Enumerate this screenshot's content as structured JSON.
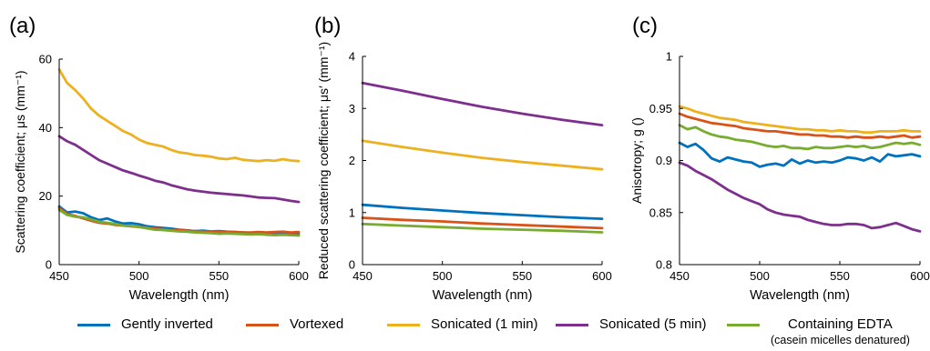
{
  "colors": {
    "gently_inverted": "#0072BD",
    "vortexed": "#D95319",
    "sonicated_1": "#EDB120",
    "sonicated_5": "#7E2F8E",
    "edta": "#77AC30"
  },
  "legend": {
    "gently_inverted": "Gently inverted",
    "vortexed": "Vortexed",
    "sonicated_1": "Sonicated (1 min)",
    "sonicated_5": "Sonicated (5 min)",
    "edta": "Containing EDTA",
    "edta_note": "(casein micelles denatured)"
  },
  "chart_data": [
    {
      "panel": "(a)",
      "type": "line",
      "xlabel": "Wavelength (nm)",
      "ylabel": "Scattering coefficient; μs (mm⁻¹)",
      "xlim": [
        450,
        600
      ],
      "ylim": [
        0,
        60
      ],
      "xticks": [
        450,
        500,
        550,
        600
      ],
      "yticks": [
        0,
        20,
        40,
        60
      ],
      "ytick_labels": [
        "0",
        "20",
        "40",
        "60"
      ],
      "x": [
        450,
        455,
        460,
        465,
        470,
        475,
        480,
        485,
        490,
        495,
        500,
        505,
        510,
        515,
        520,
        525,
        530,
        535,
        540,
        545,
        550,
        555,
        560,
        565,
        570,
        575,
        580,
        585,
        590,
        595,
        600
      ],
      "series": [
        {
          "name": "Gently inverted",
          "color_key": "gently_inverted",
          "values": [
            17.0,
            15.2,
            15.5,
            15.0,
            13.8,
            13.0,
            13.5,
            12.6,
            12.0,
            12.1,
            11.8,
            11.2,
            10.9,
            10.7,
            10.5,
            10.2,
            10.0,
            9.8,
            9.9,
            9.7,
            9.8,
            9.6,
            9.5,
            9.4,
            9.3,
            9.2,
            9.3,
            9.1,
            9.2,
            9.0,
            9.0
          ]
        },
        {
          "name": "Vortexed",
          "color_key": "vortexed",
          "values": [
            16.5,
            14.8,
            14.2,
            13.5,
            12.8,
            12.2,
            12.0,
            11.6,
            11.4,
            11.2,
            11.0,
            10.8,
            10.5,
            10.3,
            10.1,
            10.0,
            9.9,
            9.8,
            9.7,
            9.6,
            9.6,
            9.5,
            9.5,
            9.4,
            9.4,
            9.5,
            9.4,
            9.5,
            9.6,
            9.4,
            9.5
          ]
        },
        {
          "name": "Sonicated (1 min)",
          "color_key": "sonicated_1",
          "values": [
            57.0,
            53.0,
            51.0,
            48.5,
            45.5,
            43.5,
            42.0,
            40.5,
            39.0,
            38.0,
            36.5,
            35.5,
            35.0,
            34.5,
            33.5,
            32.8,
            32.5,
            32.0,
            31.8,
            31.5,
            31.0,
            30.8,
            31.2,
            30.6,
            30.4,
            30.2,
            30.5,
            30.3,
            30.8,
            30.4,
            30.2
          ]
        },
        {
          "name": "Sonicated (5 min)",
          "color_key": "sonicated_5",
          "values": [
            37.5,
            36.0,
            35.0,
            33.5,
            32.0,
            30.5,
            29.5,
            28.5,
            27.5,
            26.8,
            26.0,
            25.3,
            24.5,
            24.0,
            23.2,
            22.6,
            22.0,
            21.6,
            21.3,
            21.0,
            20.8,
            20.6,
            20.4,
            20.2,
            19.9,
            19.6,
            19.5,
            19.4,
            19.0,
            18.6,
            18.3
          ]
        },
        {
          "name": "Containing EDTA",
          "color_key": "edta",
          "values": [
            16.0,
            14.5,
            14.0,
            13.8,
            13.2,
            12.5,
            12.2,
            11.9,
            11.4,
            11.3,
            11.0,
            10.6,
            10.2,
            10.1,
            9.9,
            9.7,
            9.6,
            9.4,
            9.3,
            9.2,
            9.0,
            9.1,
            9.0,
            8.9,
            8.8,
            8.9,
            8.7,
            8.6,
            8.7,
            8.6,
            8.5
          ]
        }
      ]
    },
    {
      "panel": "(b)",
      "type": "line",
      "xlabel": "Wavelength (nm)",
      "ylabel": "Reduced scattering coefficient; μs′ (mm⁻¹)",
      "xlim": [
        450,
        600
      ],
      "ylim": [
        0,
        4
      ],
      "xticks": [
        450,
        500,
        550,
        600
      ],
      "yticks": [
        0,
        1,
        2,
        3,
        4
      ],
      "ytick_labels": [
        "0",
        "1",
        "2",
        "3",
        "4"
      ],
      "x": [
        450,
        475,
        500,
        525,
        550,
        575,
        600
      ],
      "series": [
        {
          "name": "Gently inverted",
          "color_key": "gently_inverted",
          "values": [
            1.15,
            1.09,
            1.04,
            0.99,
            0.95,
            0.91,
            0.88
          ]
        },
        {
          "name": "Vortexed",
          "color_key": "vortexed",
          "values": [
            0.9,
            0.86,
            0.83,
            0.79,
            0.76,
            0.73,
            0.7
          ]
        },
        {
          "name": "Sonicated (1 min)",
          "color_key": "sonicated_1",
          "values": [
            2.38,
            2.26,
            2.15,
            2.05,
            1.97,
            1.9,
            1.83
          ]
        },
        {
          "name": "Sonicated (5 min)",
          "color_key": "sonicated_5",
          "values": [
            3.49,
            3.34,
            3.18,
            3.03,
            2.9,
            2.78,
            2.68
          ]
        },
        {
          "name": "Containing EDTA",
          "color_key": "edta",
          "values": [
            0.78,
            0.75,
            0.72,
            0.69,
            0.67,
            0.65,
            0.62
          ]
        }
      ]
    },
    {
      "panel": "(c)",
      "type": "line",
      "xlabel": "Wavelength (nm)",
      "ylabel": "Anisotropy; g ()",
      "xlim": [
        450,
        600
      ],
      "ylim": [
        0.8,
        1.0
      ],
      "xticks": [
        450,
        500,
        550,
        600
      ],
      "yticks": [
        0.8,
        0.85,
        0.9,
        0.95,
        1.0
      ],
      "ytick_labels": [
        "0.8",
        "0.85",
        "0.9",
        "0.95",
        "1"
      ],
      "x": [
        450,
        455,
        460,
        465,
        470,
        475,
        480,
        485,
        490,
        495,
        500,
        505,
        510,
        515,
        520,
        525,
        530,
        535,
        540,
        545,
        550,
        555,
        560,
        565,
        570,
        575,
        580,
        585,
        590,
        595,
        600
      ],
      "series": [
        {
          "name": "Gently inverted",
          "color_key": "gently_inverted",
          "values": [
            0.917,
            0.913,
            0.916,
            0.91,
            0.902,
            0.899,
            0.903,
            0.901,
            0.899,
            0.898,
            0.894,
            0.896,
            0.897,
            0.895,
            0.901,
            0.897,
            0.9,
            0.898,
            0.899,
            0.898,
            0.9,
            0.903,
            0.902,
            0.9,
            0.903,
            0.899,
            0.906,
            0.904,
            0.905,
            0.906,
            0.904
          ]
        },
        {
          "name": "Vortexed",
          "color_key": "vortexed",
          "values": [
            0.945,
            0.942,
            0.94,
            0.938,
            0.936,
            0.935,
            0.934,
            0.933,
            0.931,
            0.93,
            0.929,
            0.928,
            0.928,
            0.927,
            0.926,
            0.925,
            0.925,
            0.924,
            0.924,
            0.923,
            0.923,
            0.922,
            0.923,
            0.922,
            0.922,
            0.923,
            0.922,
            0.923,
            0.924,
            0.922,
            0.923
          ]
        },
        {
          "name": "Sonicated (1 min)",
          "color_key": "sonicated_1",
          "values": [
            0.952,
            0.95,
            0.947,
            0.945,
            0.943,
            0.941,
            0.94,
            0.939,
            0.937,
            0.936,
            0.935,
            0.934,
            0.933,
            0.932,
            0.931,
            0.93,
            0.93,
            0.929,
            0.929,
            0.928,
            0.929,
            0.928,
            0.928,
            0.927,
            0.927,
            0.928,
            0.928,
            0.928,
            0.929,
            0.928,
            0.928
          ]
        },
        {
          "name": "Sonicated (5 min)",
          "color_key": "sonicated_5",
          "values": [
            0.898,
            0.895,
            0.89,
            0.886,
            0.882,
            0.877,
            0.872,
            0.868,
            0.864,
            0.861,
            0.858,
            0.853,
            0.85,
            0.848,
            0.847,
            0.846,
            0.843,
            0.841,
            0.839,
            0.838,
            0.838,
            0.839,
            0.839,
            0.838,
            0.835,
            0.836,
            0.838,
            0.84,
            0.837,
            0.834,
            0.832
          ]
        },
        {
          "name": "Containing EDTA",
          "color_key": "edta",
          "values": [
            0.934,
            0.93,
            0.932,
            0.928,
            0.925,
            0.923,
            0.922,
            0.92,
            0.919,
            0.918,
            0.916,
            0.914,
            0.913,
            0.914,
            0.912,
            0.912,
            0.911,
            0.913,
            0.912,
            0.912,
            0.913,
            0.914,
            0.913,
            0.914,
            0.912,
            0.913,
            0.915,
            0.917,
            0.916,
            0.917,
            0.915
          ]
        }
      ]
    }
  ]
}
